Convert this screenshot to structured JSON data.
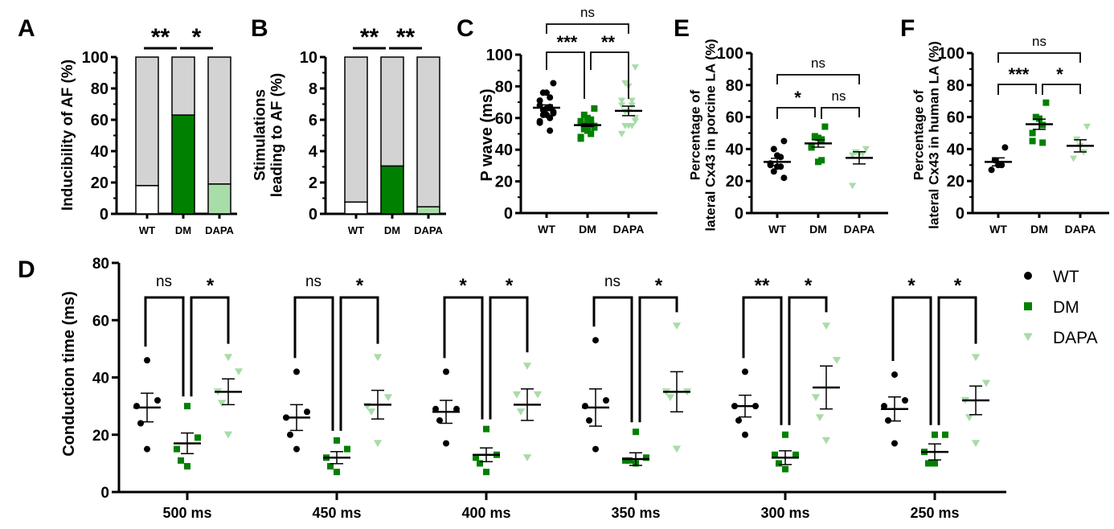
{
  "colors": {
    "wt": "#000000",
    "dm": "#008000",
    "dapa": "#a8dca8",
    "rest": "#d3d3d3",
    "axis": "#000000"
  },
  "legend": {
    "entries": [
      {
        "label": "WT",
        "marker": "circle",
        "color": "#000000"
      },
      {
        "label": "DM",
        "marker": "square",
        "color": "#008000"
      },
      {
        "label": "DAPA",
        "marker": "triangle-down",
        "color": "#a8dca8"
      }
    ]
  },
  "chart_data": [
    {
      "panel": "A",
      "type": "bar",
      "stacked": true,
      "ylabel": "Inducibility of AF (%)",
      "ylim": [
        0,
        100
      ],
      "yticks": [
        0,
        20,
        40,
        60,
        80,
        100
      ],
      "categories": [
        "WT",
        "DM",
        "DAPA"
      ],
      "values": [
        18,
        63,
        19
      ],
      "total": 100,
      "significance": [
        {
          "from": 0,
          "to": 1,
          "label": "**"
        },
        {
          "from": 1,
          "to": 2,
          "label": "*"
        }
      ]
    },
    {
      "panel": "B",
      "type": "bar",
      "stacked": true,
      "ylabel": [
        "Stimulations",
        "leading to AF (%)"
      ],
      "ylim": [
        0,
        10
      ],
      "yticks": [
        0,
        2,
        4,
        6,
        8,
        10
      ],
      "categories": [
        "WT",
        "DM",
        "DAPA"
      ],
      "values": [
        0.75,
        3.05,
        0.45
      ],
      "total": 10,
      "significance": [
        {
          "from": 0,
          "to": 1,
          "label": "**"
        },
        {
          "from": 1,
          "to": 2,
          "label": "**"
        }
      ]
    },
    {
      "panel": "C",
      "type": "scatter",
      "ylabel": "P wave (ms)",
      "ylim": [
        0,
        100
      ],
      "yticks": [
        0,
        20,
        40,
        60,
        80,
        100
      ],
      "categories": [
        "WT",
        "DM",
        "DAPA"
      ],
      "points": [
        [
          82,
          76,
          76,
          73,
          71,
          68,
          67,
          66,
          65,
          64,
          63,
          62,
          62,
          60,
          58,
          57,
          52
        ],
        [
          66,
          62,
          60,
          59,
          58,
          57,
          56,
          56,
          55,
          55,
          54,
          53,
          52,
          50,
          48,
          47
        ],
        [
          92,
          82,
          80,
          71,
          71,
          68,
          68,
          64,
          64,
          60,
          58,
          55,
          55,
          55,
          50,
          50
        ]
      ],
      "mean": [
        66.5,
        55.5,
        64.5
      ],
      "sem": [
        1.8,
        0.8,
        3.0
      ],
      "significance": [
        {
          "from": 0,
          "to": 1,
          "label": "***"
        },
        {
          "from": 1,
          "to": 2,
          "label": "**"
        },
        {
          "from": 0,
          "to": 2,
          "label": "ns"
        }
      ]
    },
    {
      "panel": "E",
      "type": "scatter",
      "ylabel": [
        "Percentage of",
        "lateral Cx43 in porcine LA (%)"
      ],
      "ylim": [
        0,
        100
      ],
      "yticks": [
        0,
        20,
        40,
        60,
        80,
        100
      ],
      "categories": [
        "WT",
        "DM",
        "DAPA"
      ],
      "points": [
        [
          45,
          40,
          36,
          35,
          31,
          30,
          29,
          29,
          26,
          22
        ],
        [
          54,
          48,
          47,
          46,
          42,
          41,
          33,
          32
        ],
        [
          40,
          38,
          37,
          37,
          36,
          17
        ]
      ],
      "mean": [
        32,
        43.5,
        34.5
      ],
      "sem": [
        2.2,
        2.3,
        3.8
      ],
      "significance": [
        {
          "from": 0,
          "to": 1,
          "label": "*"
        },
        {
          "from": 1,
          "to": 2,
          "label": "ns"
        },
        {
          "from": 0,
          "to": 2,
          "label": "ns"
        }
      ]
    },
    {
      "panel": "F",
      "type": "scatter",
      "ylabel": [
        "Percentage of",
        "lateral Cx43 in human LA  (%)"
      ],
      "ylim": [
        0,
        100
      ],
      "yticks": [
        0,
        20,
        40,
        60,
        80,
        100
      ],
      "categories": [
        "WT",
        "DM",
        "DAPA"
      ],
      "points": [
        [
          41,
          33,
          30,
          30,
          27
        ],
        [
          69,
          60,
          59,
          55,
          50,
          45,
          44
        ],
        [
          54,
          46,
          42,
          38,
          34
        ]
      ],
      "mean": [
        32,
        55.5,
        42
      ],
      "sem": [
        2.5,
        3.2,
        3.8
      ],
      "significance": [
        {
          "from": 0,
          "to": 1,
          "label": "***"
        },
        {
          "from": 1,
          "to": 2,
          "label": "*"
        },
        {
          "from": 0,
          "to": 2,
          "label": "ns"
        }
      ]
    },
    {
      "panel": "D",
      "type": "scatter",
      "grouped": true,
      "ylabel": "Conduction time (ms)",
      "ylim": [
        0,
        80
      ],
      "yticks": [
        0,
        20,
        40,
        60,
        80
      ],
      "categories": [
        "500 ms",
        "450 ms",
        "400 ms",
        "350 ms",
        "300 ms",
        "250 ms"
      ],
      "series": [
        {
          "name": "WT",
          "points": [
            [
              46,
              32,
              30,
              24,
              15
            ],
            [
              42,
              28,
              26,
              20,
              15
            ],
            [
              42,
              29,
              29,
              25,
              17
            ],
            [
              53,
              32,
              30,
              25,
              15
            ],
            [
              42,
              30,
              30,
              25,
              20
            ],
            [
              41,
              32,
              30,
              25,
              17
            ]
          ],
          "mean": [
            29.5,
            26,
            28,
            29.5,
            30,
            29
          ],
          "sem": [
            5,
            4.5,
            4,
            6.5,
            3.8,
            4.2
          ]
        },
        {
          "name": "DM",
          "points": [
            [
              30,
              19,
              15,
              11,
              9
            ],
            [
              18,
              15,
              12,
              9,
              7
            ],
            [
              22,
              13,
              12,
              10,
              7
            ],
            [
              21,
              12,
              11,
              11,
              10
            ],
            [
              20,
              13,
              13,
              10,
              8
            ],
            [
              20,
              20,
              14,
              10,
              10
            ]
          ],
          "mean": [
            17,
            12,
            13,
            11.5,
            12,
            14
          ],
          "sem": [
            3.6,
            2.1,
            2.4,
            2.2,
            2.4,
            2.8
          ]
        },
        {
          "name": "DAPA",
          "points": [
            [
              47,
              42,
              35,
              31,
              20
            ],
            [
              47,
              33,
              30,
              28,
              17
            ],
            [
              44,
              34,
              34,
              28,
              12
            ],
            [
              58,
              35,
              35,
              33,
              15
            ],
            [
              58,
              46,
              33,
              26,
              18
            ],
            [
              47,
              38,
              32,
              26,
              17
            ]
          ],
          "mean": [
            35,
            30.5,
            30.5,
            35,
            36.5,
            32
          ],
          "sem": [
            4.5,
            5,
            5.5,
            7,
            7.5,
            5
          ]
        }
      ],
      "significance": [
        {
          "group": 0,
          "wt_dm": "ns",
          "dm_dapa": "*"
        },
        {
          "group": 1,
          "wt_dm": "ns",
          "dm_dapa": "*"
        },
        {
          "group": 2,
          "wt_dm": "*",
          "dm_dapa": "*"
        },
        {
          "group": 3,
          "wt_dm": "ns",
          "dm_dapa": "*"
        },
        {
          "group": 4,
          "wt_dm": "**",
          "dm_dapa": "*"
        },
        {
          "group": 5,
          "wt_dm": "*",
          "dm_dapa": "*"
        }
      ]
    }
  ]
}
